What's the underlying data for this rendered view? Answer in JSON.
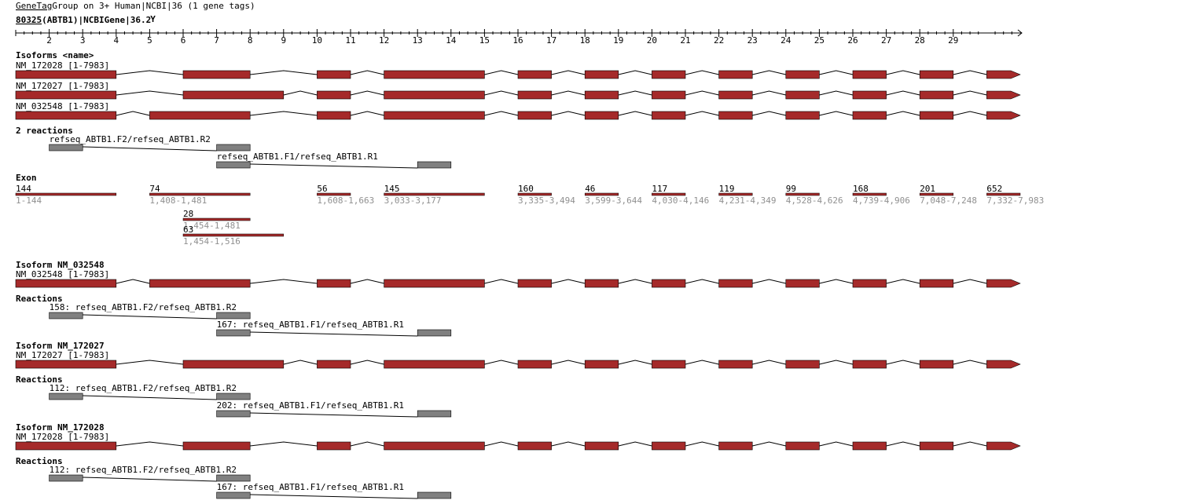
{
  "header": {
    "title_link": "GeneTag",
    "title_rest": "Group on 3+ Human|NCBI|36 (1 gene tags)",
    "subtitle_link": "80325",
    "subtitle_rest": "(ABTB1)|NCBIGene|36.2",
    "subtitle_mark": "Y"
  },
  "ruler": {
    "labels": [
      "2",
      "3",
      "4",
      "5",
      "6",
      "7",
      "8",
      "9",
      "10",
      "11",
      "12",
      "13",
      "14",
      "15",
      "16",
      "17",
      "18",
      "19",
      "20",
      "21",
      "22",
      "23",
      "24",
      "25",
      "26",
      "27",
      "28",
      "29"
    ]
  },
  "colors": {
    "exon": "#a52a2a",
    "reaction": "#808080",
    "exon_label": "#909090"
  },
  "section_isoforms": {
    "title": "Isoforms <name>",
    "isoforms": [
      {
        "label": "NM_172028 [1-7983]",
        "exons": [
          [
            0,
            3
          ],
          [
            5,
            7
          ],
          [
            9,
            10
          ],
          [
            11,
            14
          ],
          [
            15,
            16
          ],
          [
            17,
            18
          ],
          [
            19,
            20
          ],
          [
            21,
            22
          ],
          [
            23,
            24
          ],
          [
            25,
            26
          ],
          [
            27,
            28
          ],
          [
            29,
            30
          ]
        ]
      },
      {
        "label": "NM_172027 [1-7983]",
        "exons": [
          [
            0,
            3
          ],
          [
            5,
            8
          ],
          [
            9,
            10
          ],
          [
            11,
            14
          ],
          [
            15,
            16
          ],
          [
            17,
            18
          ],
          [
            19,
            20
          ],
          [
            21,
            22
          ],
          [
            23,
            24
          ],
          [
            25,
            26
          ],
          [
            27,
            28
          ],
          [
            29,
            30
          ]
        ]
      },
      {
        "label": "NM_032548 [1-7983]",
        "exons": [
          [
            0,
            3
          ],
          [
            4,
            7
          ],
          [
            9,
            10
          ],
          [
            11,
            14
          ],
          [
            15,
            16
          ],
          [
            17,
            18
          ],
          [
            19,
            20
          ],
          [
            21,
            22
          ],
          [
            23,
            24
          ],
          [
            25,
            26
          ],
          [
            27,
            28
          ],
          [
            29,
            30
          ]
        ]
      }
    ]
  },
  "section_reactions": {
    "title": "2 reactions",
    "reactions": [
      {
        "label": "refseq_ABTB1.F2/refseq_ABTB1.R2",
        "boxes": [
          [
            1,
            2
          ],
          [
            6,
            7
          ]
        ]
      },
      {
        "label": "refseq_ABTB1.F1/refseq_ABTB1.R1",
        "boxes": [
          [
            6,
            7
          ],
          [
            12,
            13
          ]
        ]
      }
    ]
  },
  "section_exon": {
    "title": "Exon",
    "exons": [
      {
        "len": "144",
        "range": "1-144",
        "span": [
          0,
          3
        ]
      },
      {
        "len": "74",
        "range": "1,408-1,481",
        "span": [
          4,
          7
        ]
      },
      {
        "len": "56",
        "range": "1,608-1,663",
        "span": [
          9,
          10
        ]
      },
      {
        "len": "145",
        "range": "3,033-3,177",
        "span": [
          11,
          14
        ]
      },
      {
        "len": "160",
        "range": "3,335-3,494",
        "span": [
          15,
          16
        ]
      },
      {
        "len": "46",
        "range": "3,599-3,644",
        "span": [
          17,
          18
        ]
      },
      {
        "len": "117",
        "range": "4,030-4,146",
        "span": [
          19,
          20
        ]
      },
      {
        "len": "119",
        "range": "4,231-4,349",
        "span": [
          21,
          22
        ]
      },
      {
        "len": "99",
        "range": "4,528-4,626",
        "span": [
          23,
          24
        ]
      },
      {
        "len": "168",
        "range": "4,739-4,906",
        "span": [
          25,
          26
        ]
      },
      {
        "len": "201",
        "range": "7,048-7,248",
        "span": [
          27,
          28
        ]
      },
      {
        "len": "652",
        "range": "7,332-7,983",
        "span": [
          29,
          30
        ]
      }
    ],
    "extra": [
      {
        "len": "28",
        "range": "1,454-1,481",
        "span": [
          5,
          7
        ]
      },
      {
        "len": "63",
        "range": "1,454-1,516",
        "span": [
          5,
          8
        ]
      }
    ]
  },
  "isoform_details": [
    {
      "title": "Isoform NM_032548",
      "label": "NM_032548 [1-7983]",
      "exons": [
        [
          0,
          3
        ],
        [
          4,
          7
        ],
        [
          9,
          10
        ],
        [
          11,
          14
        ],
        [
          15,
          16
        ],
        [
          17,
          18
        ],
        [
          19,
          20
        ],
        [
          21,
          22
        ],
        [
          23,
          24
        ],
        [
          25,
          26
        ],
        [
          27,
          28
        ],
        [
          29,
          30
        ]
      ],
      "reactions_title": "Reactions",
      "reactions": [
        {
          "label": "158: refseq_ABTB1.F2/refseq_ABTB1.R2",
          "boxes": [
            [
              1,
              2
            ],
            [
              6,
              7
            ]
          ]
        },
        {
          "label": "167: refseq_ABTB1.F1/refseq_ABTB1.R1",
          "boxes": [
            [
              6,
              7
            ],
            [
              12,
              13
            ]
          ]
        }
      ]
    },
    {
      "title": "Isoform NM_172027",
      "label": "NM_172027 [1-7983]",
      "exons": [
        [
          0,
          3
        ],
        [
          5,
          8
        ],
        [
          9,
          10
        ],
        [
          11,
          14
        ],
        [
          15,
          16
        ],
        [
          17,
          18
        ],
        [
          19,
          20
        ],
        [
          21,
          22
        ],
        [
          23,
          24
        ],
        [
          25,
          26
        ],
        [
          27,
          28
        ],
        [
          29,
          30
        ]
      ],
      "reactions_title": "Reactions",
      "reactions": [
        {
          "label": "112: refseq_ABTB1.F2/refseq_ABTB1.R2",
          "boxes": [
            [
              1,
              2
            ],
            [
              6,
              7
            ]
          ]
        },
        {
          "label": "202: refseq_ABTB1.F1/refseq_ABTB1.R1",
          "boxes": [
            [
              6,
              7
            ],
            [
              12,
              13
            ]
          ]
        }
      ]
    },
    {
      "title": "Isoform NM_172028",
      "label": "NM_172028 [1-7983]",
      "exons": [
        [
          0,
          3
        ],
        [
          5,
          7
        ],
        [
          9,
          10
        ],
        [
          11,
          14
        ],
        [
          15,
          16
        ],
        [
          17,
          18
        ],
        [
          19,
          20
        ],
        [
          21,
          22
        ],
        [
          23,
          24
        ],
        [
          25,
          26
        ],
        [
          27,
          28
        ],
        [
          29,
          30
        ]
      ],
      "reactions_title": "Reactions",
      "reactions": [
        {
          "label": "112: refseq_ABTB1.F2/refseq_ABTB1.R2",
          "boxes": [
            [
              1,
              2
            ],
            [
              6,
              7
            ]
          ]
        },
        {
          "label": "167: refseq_ABTB1.F1/refseq_ABTB1.R1",
          "boxes": [
            [
              6,
              7
            ],
            [
              12,
              13
            ]
          ]
        }
      ]
    }
  ]
}
